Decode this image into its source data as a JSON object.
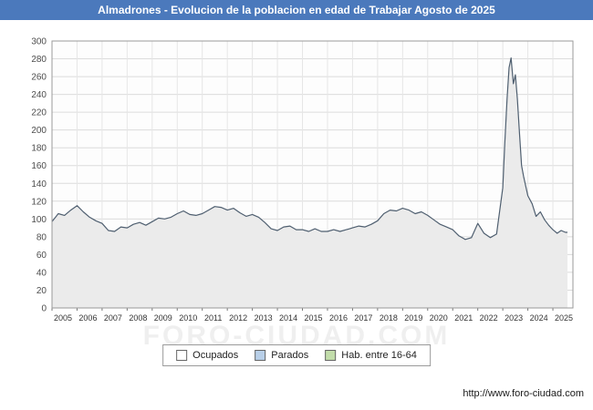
{
  "title_bar": {
    "title": "Almadrones - Evolucion de la poblacion en edad de Trabajar Agosto de 2025",
    "background_color": "#4b79bc",
    "text_color": "#ffffff"
  },
  "watermark": "FORO-CIUDAD.COM",
  "footer": {
    "url": "http://www.foro-ciudad.com"
  },
  "chart_data": {
    "type": "area",
    "title": "Almadrones - Evolucion de la poblacion en edad de Trabajar Agosto de 2025",
    "xlabel": "",
    "ylabel": "",
    "ylim": [
      0,
      300
    ],
    "ytick_step": 20,
    "xlim": [
      2005,
      2025.8
    ],
    "x_ticks": [
      2005,
      2006,
      2007,
      2008,
      2009,
      2010,
      2011,
      2012,
      2013,
      2014,
      2015,
      2016,
      2017,
      2018,
      2019,
      2020,
      2021,
      2022,
      2023,
      2024,
      2025
    ],
    "grid": true,
    "legend_position": "bottom",
    "legend": [
      {
        "label": "Ocupados",
        "color": "#ffffff"
      },
      {
        "label": "Parados",
        "color": "#b8cfe8"
      },
      {
        "label": "Hab. entre 16-64",
        "color": "#c2ddaa"
      }
    ],
    "series": [
      {
        "name": "Hab. entre 16-64",
        "line_color": "#4f5f70",
        "fill_color": "#ebebeb",
        "x": [
          2005.0,
          2005.25,
          2005.5,
          2005.75,
          2006.0,
          2006.25,
          2006.5,
          2006.75,
          2007.0,
          2007.25,
          2007.5,
          2007.75,
          2008.0,
          2008.25,
          2008.5,
          2008.75,
          2009.0,
          2009.25,
          2009.5,
          2009.75,
          2010.0,
          2010.25,
          2010.5,
          2010.75,
          2011.0,
          2011.25,
          2011.5,
          2011.75,
          2012.0,
          2012.25,
          2012.5,
          2012.75,
          2013.0,
          2013.25,
          2013.5,
          2013.75,
          2014.0,
          2014.25,
          2014.5,
          2014.75,
          2015.0,
          2015.25,
          2015.5,
          2015.75,
          2016.0,
          2016.25,
          2016.5,
          2016.75,
          2017.0,
          2017.25,
          2017.5,
          2017.75,
          2018.0,
          2018.25,
          2018.5,
          2018.75,
          2019.0,
          2019.25,
          2019.5,
          2019.75,
          2020.0,
          2020.25,
          2020.5,
          2020.75,
          2021.0,
          2021.25,
          2021.5,
          2021.75,
          2022.0,
          2022.25,
          2022.5,
          2022.75,
          2023.0,
          2023.08,
          2023.17,
          2023.25,
          2023.33,
          2023.42,
          2023.5,
          2023.58,
          2023.67,
          2023.75,
          2023.83,
          2024.0,
          2024.17,
          2024.33,
          2024.5,
          2024.67,
          2024.83,
          2025.0,
          2025.17,
          2025.33,
          2025.5,
          2025.58
        ],
        "y": [
          97,
          106,
          104,
          110,
          115,
          108,
          102,
          98,
          95,
          87,
          86,
          91,
          90,
          94,
          96,
          93,
          97,
          101,
          100,
          102,
          106,
          109,
          105,
          104,
          106,
          110,
          114,
          113,
          110,
          112,
          107,
          103,
          105,
          102,
          96,
          89,
          87,
          91,
          92,
          88,
          88,
          86,
          89,
          86,
          86,
          88,
          86,
          88,
          90,
          92,
          91,
          94,
          98,
          106,
          110,
          109,
          112,
          110,
          106,
          108,
          104,
          99,
          94,
          91,
          88,
          81,
          77,
          79,
          95,
          84,
          79,
          83,
          135,
          185,
          235,
          270,
          281,
          252,
          262,
          235,
          195,
          160,
          148,
          126,
          117,
          103,
          108,
          99,
          93,
          88,
          84,
          87,
          85,
          85
        ]
      }
    ]
  }
}
